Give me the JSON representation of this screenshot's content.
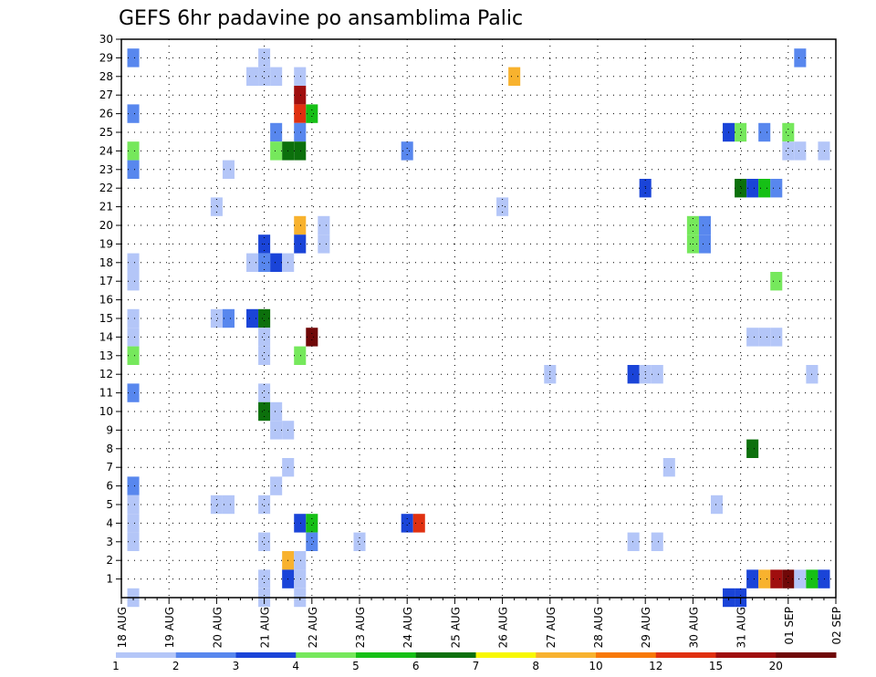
{
  "chart_data": {
    "type": "heatmap",
    "title": "GEFS 6hr padavine po ansamblima Palic",
    "x_tick_labels": [
      "18 AUG",
      "19 AUG",
      "20 AUG",
      "21 AUG",
      "22 AUG",
      "23 AUG",
      "24 AUG",
      "25 AUG",
      "26 AUG",
      "27 AUG",
      "28 AUG",
      "29 AUG",
      "30 AUG",
      "31 AUG",
      "01 SEP",
      "02 SEP"
    ],
    "y_tick_labels": [
      "1",
      "2",
      "3",
      "4",
      "5",
      "6",
      "7",
      "8",
      "9",
      "10",
      "11",
      "12",
      "13",
      "14",
      "15",
      "16",
      "17",
      "18",
      "19",
      "20",
      "21",
      "22",
      "23",
      "24",
      "25",
      "26",
      "27",
      "28",
      "29",
      "30"
    ],
    "xlim": [
      0,
      15
    ],
    "ylim": [
      0,
      30
    ],
    "x_unit": "day (0 = 18 AUG 00Z, 6-hour steps)",
    "grid": true,
    "legend": {
      "placement": "bottom",
      "labels": [
        "1",
        "2",
        "3",
        "4",
        "5",
        "6",
        "7",
        "8",
        "10",
        "12",
        "15",
        "20"
      ],
      "colors": [
        "#b4c6f8",
        "#5887ee",
        "#1a44d8",
        "#76e85c",
        "#16c016",
        "#0c700c",
        "#f8f800",
        "#f8b22e",
        "#f87806",
        "#e03010",
        "#a00e0e",
        "#700808"
      ]
    },
    "cells": [
      {
        "x": 0.25,
        "y": 29,
        "v": "#5887ee"
      },
      {
        "x": 0.25,
        "y": 26,
        "v": "#5887ee"
      },
      {
        "x": 0.25,
        "y": 24,
        "v": "#76e85c"
      },
      {
        "x": 0.25,
        "y": 23,
        "v": "#5887ee"
      },
      {
        "x": 0.25,
        "y": 18,
        "v": "#b4c6f8"
      },
      {
        "x": 0.25,
        "y": 17,
        "v": "#b4c6f8"
      },
      {
        "x": 0.25,
        "y": 15,
        "v": "#b4c6f8"
      },
      {
        "x": 0.25,
        "y": 14,
        "v": "#b4c6f8"
      },
      {
        "x": 0.25,
        "y": 13,
        "v": "#76e85c"
      },
      {
        "x": 0.25,
        "y": 11,
        "v": "#5887ee"
      },
      {
        "x": 0.25,
        "y": 6,
        "v": "#5887ee"
      },
      {
        "x": 0.25,
        "y": 5,
        "v": "#b4c6f8"
      },
      {
        "x": 0.25,
        "y": 4,
        "v": "#b4c6f8"
      },
      {
        "x": 0.25,
        "y": 3,
        "v": "#b4c6f8"
      },
      {
        "x": 0.25,
        "y": 0,
        "v": "#b4c6f8"
      },
      {
        "x": 2.0,
        "y": 21,
        "v": "#b4c6f8"
      },
      {
        "x": 2.0,
        "y": 15,
        "v": "#b4c6f8"
      },
      {
        "x": 2.0,
        "y": 5,
        "v": "#b4c6f8"
      },
      {
        "x": 2.25,
        "y": 23,
        "v": "#b4c6f8"
      },
      {
        "x": 2.25,
        "y": 15,
        "v": "#5887ee"
      },
      {
        "x": 2.25,
        "y": 5,
        "v": "#b4c6f8"
      },
      {
        "x": 2.75,
        "y": 28,
        "v": "#b4c6f8"
      },
      {
        "x": 2.75,
        "y": 18,
        "v": "#b4c6f8"
      },
      {
        "x": 2.75,
        "y": 15,
        "v": "#1a44d8"
      },
      {
        "x": 3.0,
        "y": 29,
        "v": "#b4c6f8"
      },
      {
        "x": 3.0,
        "y": 28,
        "v": "#b4c6f8"
      },
      {
        "x": 3.0,
        "y": 19,
        "v": "#1a44d8"
      },
      {
        "x": 3.0,
        "y": 18,
        "v": "#5887ee"
      },
      {
        "x": 3.0,
        "y": 15,
        "v": "#0c700c"
      },
      {
        "x": 3.0,
        "y": 14,
        "v": "#b4c6f8"
      },
      {
        "x": 3.0,
        "y": 13,
        "v": "#b4c6f8"
      },
      {
        "x": 3.0,
        "y": 11,
        "v": "#b4c6f8"
      },
      {
        "x": 3.0,
        "y": 10,
        "v": "#0c700c"
      },
      {
        "x": 3.0,
        "y": 5,
        "v": "#b4c6f8"
      },
      {
        "x": 3.0,
        "y": 3,
        "v": "#b4c6f8"
      },
      {
        "x": 3.0,
        "y": 1,
        "v": "#b4c6f8"
      },
      {
        "x": 3.0,
        "y": 0,
        "v": "#b4c6f8"
      },
      {
        "x": 3.25,
        "y": 28,
        "v": "#b4c6f8"
      },
      {
        "x": 3.25,
        "y": 25,
        "v": "#5887ee"
      },
      {
        "x": 3.25,
        "y": 24,
        "v": "#76e85c"
      },
      {
        "x": 3.25,
        "y": 18,
        "v": "#1a44d8"
      },
      {
        "x": 3.25,
        "y": 10,
        "v": "#b4c6f8"
      },
      {
        "x": 3.25,
        "y": 9,
        "v": "#b4c6f8"
      },
      {
        "x": 3.25,
        "y": 6,
        "v": "#b4c6f8"
      },
      {
        "x": 3.5,
        "y": 24,
        "v": "#0c700c"
      },
      {
        "x": 3.5,
        "y": 18,
        "v": "#b4c6f8"
      },
      {
        "x": 3.5,
        "y": 9,
        "v": "#b4c6f8"
      },
      {
        "x": 3.5,
        "y": 7,
        "v": "#b4c6f8"
      },
      {
        "x": 3.5,
        "y": 2,
        "v": "#f8b22e"
      },
      {
        "x": 3.5,
        "y": 1,
        "v": "#1a44d8"
      },
      {
        "x": 3.75,
        "y": 28,
        "v": "#b4c6f8"
      },
      {
        "x": 3.75,
        "y": 27,
        "v": "#a00e0e"
      },
      {
        "x": 3.75,
        "y": 26,
        "v": "#e03010"
      },
      {
        "x": 3.75,
        "y": 25,
        "v": "#5887ee"
      },
      {
        "x": 3.75,
        "y": 24,
        "v": "#0c700c"
      },
      {
        "x": 3.75,
        "y": 20,
        "v": "#f8b22e"
      },
      {
        "x": 3.75,
        "y": 19,
        "v": "#1a44d8"
      },
      {
        "x": 3.75,
        "y": 13,
        "v": "#76e85c"
      },
      {
        "x": 3.75,
        "y": 4,
        "v": "#1a44d8"
      },
      {
        "x": 3.75,
        "y": 2,
        "v": "#b4c6f8"
      },
      {
        "x": 3.75,
        "y": 1,
        "v": "#b4c6f8"
      },
      {
        "x": 3.75,
        "y": 0,
        "v": "#b4c6f8"
      },
      {
        "x": 4.0,
        "y": 26,
        "v": "#16c016"
      },
      {
        "x": 4.0,
        "y": 14,
        "v": "#700808"
      },
      {
        "x": 4.0,
        "y": 4,
        "v": "#16c016"
      },
      {
        "x": 4.0,
        "y": 3,
        "v": "#5887ee"
      },
      {
        "x": 4.25,
        "y": 20,
        "v": "#b4c6f8"
      },
      {
        "x": 5.0,
        "y": 3,
        "v": "#b4c6f8"
      },
      {
        "x": 6.0,
        "y": 24,
        "v": "#5887ee"
      },
      {
        "x": 6.0,
        "y": 4,
        "v": "#1a44d8"
      },
      {
        "x": 6.25,
        "y": 4,
        "v": "#e03010"
      },
      {
        "x": 8.0,
        "y": 21,
        "v": "#b4c6f8"
      },
      {
        "x": 9.0,
        "y": 12,
        "v": "#b4c6f8"
      },
      {
        "x": 10.75,
        "y": 12,
        "v": "#1a44d8"
      },
      {
        "x": 10.75,
        "y": 3,
        "v": "#b4c6f8"
      },
      {
        "x": 11.0,
        "y": 22,
        "v": "#1a44d8"
      },
      {
        "x": 11.0,
        "y": 12,
        "v": "#b4c6f8"
      },
      {
        "x": 11.25,
        "y": 12,
        "v": "#b4c6f8"
      },
      {
        "x": 11.25,
        "y": 3,
        "v": "#b4c6f8"
      },
      {
        "x": 11.5,
        "y": 7,
        "v": "#b4c6f8"
      },
      {
        "x": 8.25,
        "y": 28,
        "v": "#f8b22e"
      },
      {
        "x": 4.25,
        "y": 19,
        "v": "#b4c6f8"
      },
      {
        "x": 12.0,
        "y": 20,
        "v": "#76e85c"
      },
      {
        "x": 12.0,
        "y": 19,
        "v": "#76e85c"
      },
      {
        "x": 12.25,
        "y": 20,
        "v": "#5887ee"
      },
      {
        "x": 12.25,
        "y": 19,
        "v": "#5887ee"
      },
      {
        "x": 12.5,
        "y": 5,
        "v": "#b4c6f8"
      },
      {
        "x": 12.75,
        "y": 25,
        "v": "#1a44d8"
      },
      {
        "x": 12.75,
        "y": 0,
        "v": "#1a44d8"
      },
      {
        "x": 13.0,
        "y": 25,
        "v": "#76e85c"
      },
      {
        "x": 13.0,
        "y": 22,
        "v": "#0c700c"
      },
      {
        "x": 13.0,
        "y": 0,
        "v": "#1a44d8"
      },
      {
        "x": 13.25,
        "y": 22,
        "v": "#1a44d8"
      },
      {
        "x": 13.25,
        "y": 14,
        "v": "#b4c6f8"
      },
      {
        "x": 13.25,
        "y": 8,
        "v": "#0c700c"
      },
      {
        "x": 13.25,
        "y": 1,
        "v": "#1a44d8"
      },
      {
        "x": 13.5,
        "y": 25,
        "v": "#5887ee"
      },
      {
        "x": 13.5,
        "y": 22,
        "v": "#16c016"
      },
      {
        "x": 13.5,
        "y": 14,
        "v": "#b4c6f8"
      },
      {
        "x": 13.5,
        "y": 1,
        "v": "#f8b22e"
      },
      {
        "x": 13.75,
        "y": 22,
        "v": "#5887ee"
      },
      {
        "x": 13.75,
        "y": 17,
        "v": "#76e85c"
      },
      {
        "x": 13.75,
        "y": 14,
        "v": "#b4c6f8"
      },
      {
        "x": 13.75,
        "y": 1,
        "v": "#a00e0e"
      },
      {
        "x": 14.0,
        "y": 25,
        "v": "#76e85c"
      },
      {
        "x": 14.0,
        "y": 24,
        "v": "#b4c6f8"
      },
      {
        "x": 14.0,
        "y": 1,
        "v": "#700808"
      },
      {
        "x": 14.25,
        "y": 29,
        "v": "#5887ee"
      },
      {
        "x": 14.25,
        "y": 24,
        "v": "#b4c6f8"
      },
      {
        "x": 14.25,
        "y": 1,
        "v": "#b4c6f8"
      },
      {
        "x": 14.5,
        "y": 12,
        "v": "#b4c6f8"
      },
      {
        "x": 14.5,
        "y": 1,
        "v": "#16c016"
      },
      {
        "x": 14.75,
        "y": 24,
        "v": "#b4c6f8"
      },
      {
        "x": 14.75,
        "y": 1,
        "v": "#1a44d8"
      }
    ]
  }
}
